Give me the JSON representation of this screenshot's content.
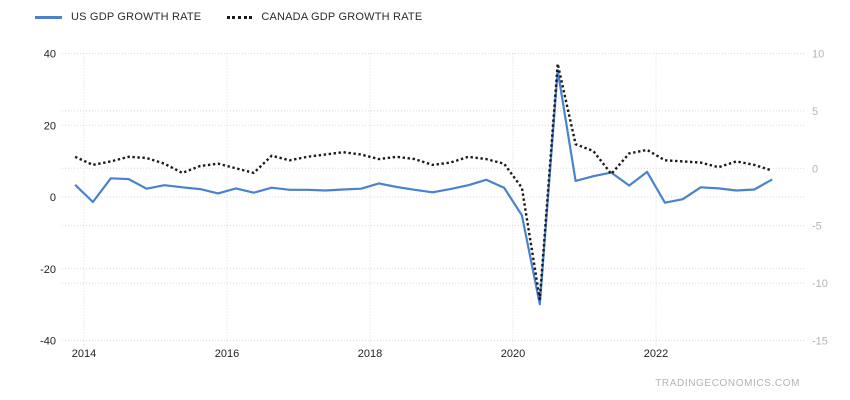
{
  "chart": {
    "legend": {
      "items": [
        {
          "label": "US GDP GROWTH RATE",
          "color": "#4a82cd",
          "line_style": "solid"
        },
        {
          "label": "CANADA GDP GROWTH RATE",
          "color": "#1a1a1a",
          "line_style": "dotted"
        }
      ]
    },
    "watermark": "TRADINGECONOMICS.COM",
    "colors": {
      "grid": "#d9d9d9",
      "left_axis_label": "#222222",
      "right_axis_label": "#b3b3b3",
      "x_axis_label": "#222222",
      "background": "#ffffff"
    }
  },
  "chart_data": {
    "type": "line",
    "title": "",
    "xlabel": "",
    "ylabel_left": "",
    "ylabel_right": "",
    "legend_position": "top-left",
    "grid": true,
    "x_start": 2013.875,
    "x_step": 0.25,
    "x_tick_values": [
      2014,
      2016,
      2018,
      2020,
      2022
    ],
    "x_tick_labels": [
      "2014",
      "2016",
      "2018",
      "2020",
      "2022"
    ],
    "left_axis": {
      "range": [
        -40,
        40
      ],
      "ticks": [
        40,
        20,
        0,
        -20,
        -40
      ]
    },
    "right_axis": {
      "range": [
        -15,
        10
      ],
      "ticks": [
        10,
        5,
        0,
        -5,
        -10,
        -15
      ]
    },
    "series": [
      {
        "name": "US GDP GROWTH RATE",
        "axis": "left",
        "color": "#4a82cd",
        "dash": "solid",
        "values": [
          3.4,
          -1.4,
          5.2,
          5.0,
          2.3,
          3.3,
          2.7,
          2.2,
          1.0,
          2.4,
          1.2,
          2.6,
          2.0,
          2.0,
          1.8,
          2.1,
          2.3,
          3.8,
          2.8,
          2.0,
          1.3,
          2.2,
          3.3,
          4.8,
          2.6,
          -5.1,
          -29.9,
          35.3,
          4.5,
          5.8,
          6.8,
          3.2,
          7.0,
          -1.6,
          -0.6,
          2.7,
          2.4,
          1.8,
          2.1,
          4.9
        ]
      },
      {
        "name": "CANADA GDP GROWTH RATE",
        "axis": "right",
        "color": "#1a1a1a",
        "dash": "dotted",
        "values": [
          1.0,
          0.3,
          0.6,
          1.0,
          0.9,
          0.4,
          -0.4,
          0.2,
          0.4,
          0.0,
          -0.4,
          1.1,
          0.7,
          1.0,
          1.2,
          1.4,
          1.2,
          0.8,
          1.0,
          0.8,
          0.3,
          0.5,
          1.0,
          0.8,
          0.4,
          -1.7,
          -11.4,
          9.1,
          2.1,
          1.5,
          -0.5,
          1.3,
          1.6,
          0.7,
          0.6,
          0.5,
          0.1,
          0.6,
          0.3,
          -0.2
        ]
      }
    ]
  }
}
